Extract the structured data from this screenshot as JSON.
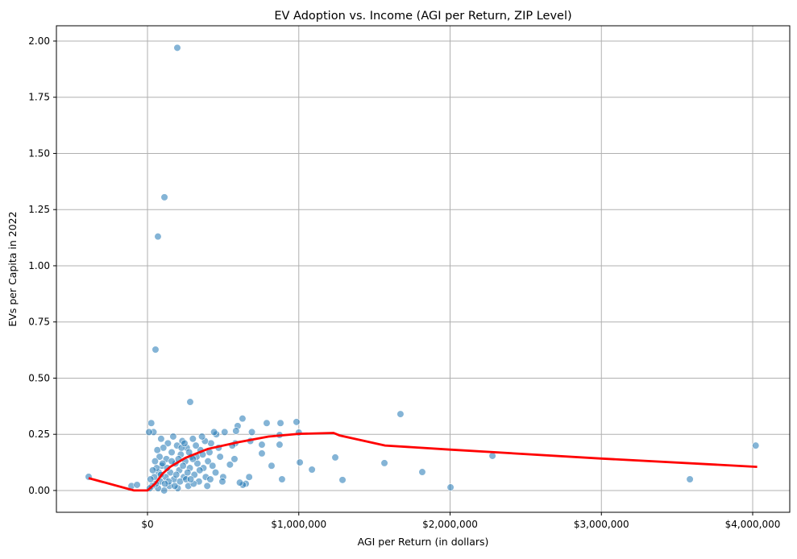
{
  "chart_data": {
    "type": "scatter",
    "title": "EV Adoption vs. Income (AGI per Return, ZIP Level)",
    "xlabel": "AGI per Return (in dollars)",
    "ylabel": "EVs per Capita in 2022",
    "xlim": [
      -602000,
      4245000
    ],
    "ylim": [
      -0.097,
      2.068
    ],
    "grid": true,
    "x_ticks": [
      0,
      1000000,
      2000000,
      3000000,
      4000000
    ],
    "x_tick_labels": [
      "$0",
      "$1,000,000",
      "$2,000,000",
      "$3,000,000",
      "$4,000,000"
    ],
    "y_ticks": [
      0,
      0.25,
      0.5,
      0.75,
      1.0,
      1.25,
      1.5,
      1.75,
      2.0
    ],
    "y_tick_labels": [
      "0.00",
      "0.25",
      "0.50",
      "0.75",
      "1.00",
      "1.25",
      "1.50",
      "1.75",
      "2.00"
    ],
    "colors": {
      "points": "#1f77b4",
      "trend": "#ff0000",
      "grid": "#b0b0b0"
    },
    "points": [
      [
        -389000,
        0.061
      ],
      [
        -106000,
        0.02
      ],
      [
        -69000,
        0.025
      ],
      [
        197000,
        1.97
      ],
      [
        112000,
        1.305
      ],
      [
        69000,
        1.13
      ],
      [
        53000,
        0.627
      ],
      [
        282000,
        0.394
      ],
      [
        1672000,
        0.34
      ],
      [
        985000,
        0.305
      ],
      [
        879000,
        0.3
      ],
      [
        788000,
        0.3
      ],
      [
        628000,
        0.32
      ],
      [
        596000,
        0.287
      ],
      [
        2280000,
        0.154
      ],
      [
        4020000,
        0.2
      ],
      [
        3585000,
        0.05
      ],
      [
        2003000,
        0.014
      ],
      [
        1816000,
        0.082
      ],
      [
        1566000,
        0.122
      ],
      [
        1289000,
        0.047
      ],
      [
        1241000,
        0.147
      ],
      [
        1087000,
        0.093
      ],
      [
        1007000,
        0.125
      ],
      [
        1000000,
        0.258
      ],
      [
        889000,
        0.05
      ],
      [
        873000,
        0.247
      ],
      [
        873000,
        0.204
      ],
      [
        820000,
        0.11
      ],
      [
        756000,
        0.165
      ],
      [
        756000,
        0.204
      ],
      [
        690000,
        0.26
      ],
      [
        680000,
        0.22
      ],
      [
        672000,
        0.06
      ],
      [
        650000,
        0.03
      ],
      [
        630000,
        0.025
      ],
      [
        610000,
        0.035
      ],
      [
        585000,
        0.265
      ],
      [
        580000,
        0.21
      ],
      [
        575000,
        0.14
      ],
      [
        560000,
        0.2
      ],
      [
        545000,
        0.115
      ],
      [
        510000,
        0.26
      ],
      [
        500000,
        0.06
      ],
      [
        495000,
        0.04
      ],
      [
        480000,
        0.15
      ],
      [
        470000,
        0.19
      ],
      [
        455000,
        0.25
      ],
      [
        440000,
        0.26
      ],
      [
        420000,
        0.21
      ],
      [
        410000,
        0.17
      ],
      [
        400000,
        0.13
      ],
      [
        395000,
        0.02
      ],
      [
        385000,
        0.06
      ],
      [
        380000,
        0.22
      ],
      [
        370000,
        0.1
      ],
      [
        360000,
        0.24
      ],
      [
        350000,
        0.18
      ],
      [
        340000,
        0.04
      ],
      [
        330000,
        0.12
      ],
      [
        320000,
        0.2
      ],
      [
        310000,
        0.07
      ],
      [
        300000,
        0.23
      ],
      [
        290000,
        0.15
      ],
      [
        280000,
        0.1
      ],
      [
        270000,
        0.02
      ],
      [
        260000,
        0.19
      ],
      [
        250000,
        0.13
      ],
      [
        240000,
        0.06
      ],
      [
        230000,
        0.22
      ],
      [
        220000,
        0.16
      ],
      [
        210000,
        0.09
      ],
      [
        200000,
        0.01
      ],
      [
        195000,
        0.2
      ],
      [
        185000,
        0.12
      ],
      [
        175000,
        0.05
      ],
      [
        170000,
        0.24
      ],
      [
        160000,
        0.17
      ],
      [
        150000,
        0.08
      ],
      [
        145000,
        0.02
      ],
      [
        135000,
        0.21
      ],
      [
        125000,
        0.14
      ],
      [
        120000,
        0.06
      ],
      [
        110000,
        0.0
      ],
      [
        105000,
        0.19
      ],
      [
        95000,
        0.11
      ],
      [
        90000,
        0.23
      ],
      [
        85000,
        0.04
      ],
      [
        80000,
        0.15
      ],
      [
        75000,
        0.08
      ],
      [
        70000,
        0.01
      ],
      [
        65000,
        0.18
      ],
      [
        60000,
        0.1
      ],
      [
        55000,
        0.03
      ],
      [
        50000,
        0.13
      ],
      [
        45000,
        0.06
      ],
      [
        40000,
        0.26
      ],
      [
        35000,
        0.09
      ],
      [
        30000,
        0.02
      ],
      [
        25000,
        0.3
      ],
      [
        20000,
        0.05
      ],
      [
        10000,
        0.26
      ],
      [
        15000,
        0.01
      ],
      [
        100000,
        0.12
      ],
      [
        130000,
        0.1
      ],
      [
        160000,
        0.13
      ],
      [
        190000,
        0.07
      ],
      [
        215000,
        0.04
      ],
      [
        235000,
        0.11
      ],
      [
        255000,
        0.05
      ],
      [
        275000,
        0.17
      ],
      [
        305000,
        0.03
      ],
      [
        325000,
        0.15
      ],
      [
        345000,
        0.09
      ],
      [
        365000,
        0.16
      ],
      [
        415000,
        0.05
      ],
      [
        430000,
        0.11
      ],
      [
        450000,
        0.08
      ],
      [
        140000,
        0.04
      ],
      [
        115000,
        0.03
      ],
      [
        180000,
        0.02
      ],
      [
        205000,
        0.14
      ],
      [
        225000,
        0.19
      ],
      [
        245000,
        0.21
      ],
      [
        265000,
        0.08
      ],
      [
        285000,
        0.05
      ],
      [
        300000,
        0.14
      ],
      [
        88000,
        0.07
      ]
    ],
    "trend_line": [
      [
        -389000,
        0.055
      ],
      [
        -90000,
        0.0
      ],
      [
        0,
        0.0
      ],
      [
        50000,
        0.03
      ],
      [
        100000,
        0.075
      ],
      [
        150000,
        0.105
      ],
      [
        250000,
        0.145
      ],
      [
        400000,
        0.185
      ],
      [
        600000,
        0.215
      ],
      [
        800000,
        0.24
      ],
      [
        1000000,
        0.252
      ],
      [
        1230000,
        0.256
      ],
      [
        1270000,
        0.245
      ],
      [
        1570000,
        0.2
      ],
      [
        2000000,
        0.182
      ],
      [
        3000000,
        0.142
      ],
      [
        4030000,
        0.105
      ]
    ]
  }
}
